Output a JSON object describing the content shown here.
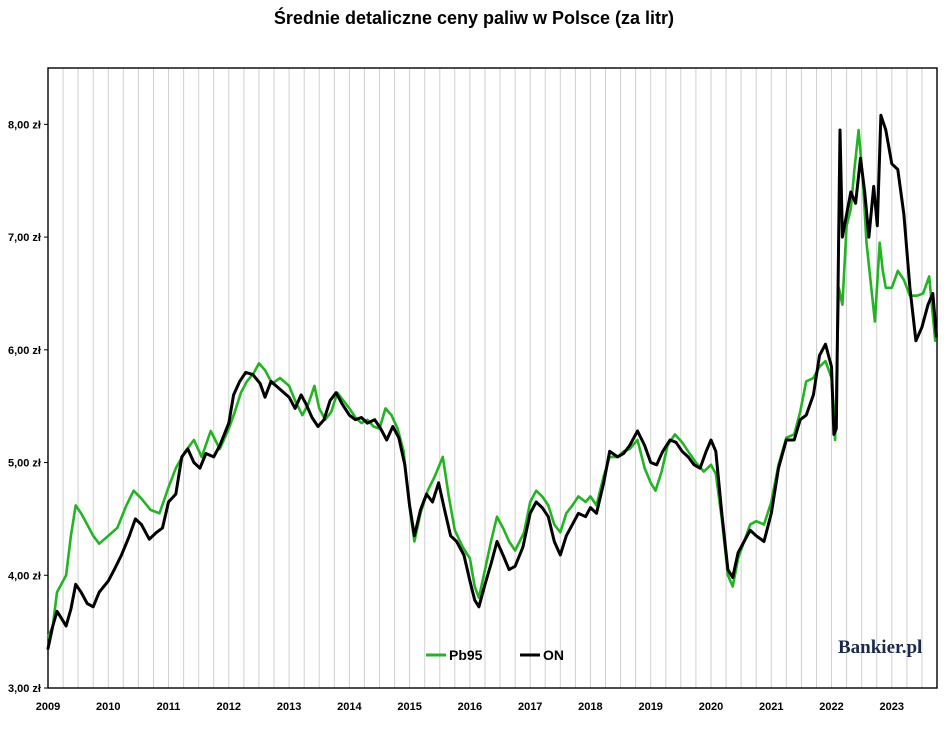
{
  "chart_data": {
    "type": "line",
    "title": "Średnie detaliczne ceny paliw w Polsce (za litr)",
    "xlabel": "",
    "ylabel": "",
    "xlim": [
      2009.0,
      2023.75
    ],
    "ylim": [
      3.0,
      8.5
    ],
    "x_ticks": [
      "2009",
      "2010",
      "2011",
      "2012",
      "2013",
      "2014",
      "2015",
      "2016",
      "2017",
      "2018",
      "2019",
      "2020",
      "2021",
      "2022",
      "2023"
    ],
    "y_ticks": [
      {
        "value": 3.0,
        "label": "3,00 zł"
      },
      {
        "value": 4.0,
        "label": "4,00 zł"
      },
      {
        "value": 5.0,
        "label": "5,00 zł"
      },
      {
        "value": 6.0,
        "label": "6,00 zł"
      },
      {
        "value": 7.0,
        "label": "7,00 zł"
      },
      {
        "value": 8.0,
        "label": "8,00 zł"
      }
    ],
    "grid": "vertical",
    "legend_position": "bottom-center",
    "series": [
      {
        "name": "Pb95",
        "color": "#22b422",
        "points": [
          [
            2009.0,
            3.45
          ],
          [
            2009.08,
            3.55
          ],
          [
            2009.15,
            3.85
          ],
          [
            2009.22,
            3.92
          ],
          [
            2009.3,
            4.0
          ],
          [
            2009.38,
            4.35
          ],
          [
            2009.46,
            4.62
          ],
          [
            2009.55,
            4.55
          ],
          [
            2009.65,
            4.45
          ],
          [
            2009.75,
            4.35
          ],
          [
            2009.85,
            4.28
          ],
          [
            2010.0,
            4.35
          ],
          [
            2010.15,
            4.42
          ],
          [
            2010.3,
            4.62
          ],
          [
            2010.42,
            4.75
          ],
          [
            2010.55,
            4.68
          ],
          [
            2010.7,
            4.58
          ],
          [
            2010.85,
            4.55
          ],
          [
            2011.0,
            4.78
          ],
          [
            2011.12,
            4.95
          ],
          [
            2011.28,
            5.1
          ],
          [
            2011.42,
            5.2
          ],
          [
            2011.55,
            5.05
          ],
          [
            2011.7,
            5.28
          ],
          [
            2011.85,
            5.12
          ],
          [
            2012.0,
            5.3
          ],
          [
            2012.1,
            5.45
          ],
          [
            2012.2,
            5.62
          ],
          [
            2012.3,
            5.72
          ],
          [
            2012.42,
            5.8
          ],
          [
            2012.5,
            5.88
          ],
          [
            2012.6,
            5.82
          ],
          [
            2012.72,
            5.7
          ],
          [
            2012.85,
            5.75
          ],
          [
            2013.0,
            5.68
          ],
          [
            2013.1,
            5.55
          ],
          [
            2013.22,
            5.42
          ],
          [
            2013.32,
            5.52
          ],
          [
            2013.42,
            5.68
          ],
          [
            2013.5,
            5.48
          ],
          [
            2013.6,
            5.38
          ],
          [
            2013.7,
            5.45
          ],
          [
            2013.8,
            5.62
          ],
          [
            2013.9,
            5.55
          ],
          [
            2014.0,
            5.48
          ],
          [
            2014.1,
            5.4
          ],
          [
            2014.2,
            5.35
          ],
          [
            2014.3,
            5.38
          ],
          [
            2014.4,
            5.32
          ],
          [
            2014.5,
            5.3
          ],
          [
            2014.6,
            5.48
          ],
          [
            2014.7,
            5.42
          ],
          [
            2014.8,
            5.3
          ],
          [
            2014.9,
            5.1
          ],
          [
            2015.0,
            4.6
          ],
          [
            2015.08,
            4.3
          ],
          [
            2015.18,
            4.55
          ],
          [
            2015.3,
            4.75
          ],
          [
            2015.42,
            4.88
          ],
          [
            2015.55,
            5.05
          ],
          [
            2015.65,
            4.7
          ],
          [
            2015.75,
            4.4
          ],
          [
            2015.88,
            4.25
          ],
          [
            2016.0,
            4.15
          ],
          [
            2016.08,
            3.9
          ],
          [
            2016.15,
            3.8
          ],
          [
            2016.25,
            4.05
          ],
          [
            2016.35,
            4.3
          ],
          [
            2016.45,
            4.52
          ],
          [
            2016.55,
            4.42
          ],
          [
            2016.65,
            4.3
          ],
          [
            2016.75,
            4.22
          ],
          [
            2016.9,
            4.38
          ],
          [
            2017.0,
            4.65
          ],
          [
            2017.1,
            4.75
          ],
          [
            2017.2,
            4.7
          ],
          [
            2017.3,
            4.62
          ],
          [
            2017.4,
            4.45
          ],
          [
            2017.5,
            4.38
          ],
          [
            2017.6,
            4.55
          ],
          [
            2017.7,
            4.62
          ],
          [
            2017.8,
            4.7
          ],
          [
            2017.92,
            4.65
          ],
          [
            2018.0,
            4.7
          ],
          [
            2018.1,
            4.62
          ],
          [
            2018.22,
            4.88
          ],
          [
            2018.32,
            5.05
          ],
          [
            2018.45,
            5.05
          ],
          [
            2018.55,
            5.1
          ],
          [
            2018.65,
            5.12
          ],
          [
            2018.78,
            5.2
          ],
          [
            2018.9,
            4.95
          ],
          [
            2019.0,
            4.82
          ],
          [
            2019.08,
            4.75
          ],
          [
            2019.18,
            4.92
          ],
          [
            2019.28,
            5.15
          ],
          [
            2019.4,
            5.25
          ],
          [
            2019.52,
            5.18
          ],
          [
            2019.62,
            5.1
          ],
          [
            2019.75,
            5.0
          ],
          [
            2019.88,
            4.92
          ],
          [
            2020.0,
            4.98
          ],
          [
            2020.08,
            4.9
          ],
          [
            2020.18,
            4.5
          ],
          [
            2020.28,
            4.0
          ],
          [
            2020.36,
            3.9
          ],
          [
            2020.45,
            4.15
          ],
          [
            2020.55,
            4.3
          ],
          [
            2020.65,
            4.45
          ],
          [
            2020.75,
            4.48
          ],
          [
            2020.88,
            4.45
          ],
          [
            2021.0,
            4.65
          ],
          [
            2021.12,
            4.98
          ],
          [
            2021.25,
            5.22
          ],
          [
            2021.38,
            5.25
          ],
          [
            2021.48,
            5.45
          ],
          [
            2021.58,
            5.72
          ],
          [
            2021.7,
            5.75
          ],
          [
            2021.8,
            5.85
          ],
          [
            2021.9,
            5.9
          ],
          [
            2022.0,
            5.75
          ],
          [
            2022.06,
            5.2
          ],
          [
            2022.12,
            6.55
          ],
          [
            2022.18,
            6.4
          ],
          [
            2022.25,
            7.1
          ],
          [
            2022.32,
            7.25
          ],
          [
            2022.38,
            7.6
          ],
          [
            2022.45,
            7.95
          ],
          [
            2022.52,
            7.5
          ],
          [
            2022.58,
            6.95
          ],
          [
            2022.65,
            6.6
          ],
          [
            2022.72,
            6.25
          ],
          [
            2022.8,
            6.95
          ],
          [
            2022.85,
            6.7
          ],
          [
            2022.9,
            6.55
          ],
          [
            2023.0,
            6.55
          ],
          [
            2023.1,
            6.7
          ],
          [
            2023.2,
            6.62
          ],
          [
            2023.3,
            6.48
          ],
          [
            2023.42,
            6.48
          ],
          [
            2023.52,
            6.5
          ],
          [
            2023.62,
            6.65
          ],
          [
            2023.72,
            6.08
          ]
        ]
      },
      {
        "name": "ON",
        "color": "#000000",
        "points": [
          [
            2009.0,
            3.35
          ],
          [
            2009.08,
            3.55
          ],
          [
            2009.15,
            3.68
          ],
          [
            2009.22,
            3.62
          ],
          [
            2009.3,
            3.55
          ],
          [
            2009.38,
            3.7
          ],
          [
            2009.46,
            3.92
          ],
          [
            2009.55,
            3.85
          ],
          [
            2009.65,
            3.75
          ],
          [
            2009.75,
            3.72
          ],
          [
            2009.85,
            3.85
          ],
          [
            2010.0,
            3.95
          ],
          [
            2010.1,
            4.05
          ],
          [
            2010.22,
            4.18
          ],
          [
            2010.35,
            4.35
          ],
          [
            2010.45,
            4.5
          ],
          [
            2010.55,
            4.45
          ],
          [
            2010.68,
            4.32
          ],
          [
            2010.8,
            4.38
          ],
          [
            2010.9,
            4.42
          ],
          [
            2011.0,
            4.65
          ],
          [
            2011.12,
            4.72
          ],
          [
            2011.22,
            5.05
          ],
          [
            2011.32,
            5.12
          ],
          [
            2011.42,
            5.0
          ],
          [
            2011.52,
            4.95
          ],
          [
            2011.62,
            5.08
          ],
          [
            2011.75,
            5.05
          ],
          [
            2011.85,
            5.15
          ],
          [
            2012.0,
            5.35
          ],
          [
            2012.08,
            5.6
          ],
          [
            2012.18,
            5.72
          ],
          [
            2012.28,
            5.8
          ],
          [
            2012.4,
            5.78
          ],
          [
            2012.52,
            5.7
          ],
          [
            2012.6,
            5.58
          ],
          [
            2012.7,
            5.72
          ],
          [
            2012.85,
            5.65
          ],
          [
            2013.0,
            5.58
          ],
          [
            2013.1,
            5.48
          ],
          [
            2013.2,
            5.6
          ],
          [
            2013.28,
            5.52
          ],
          [
            2013.38,
            5.4
          ],
          [
            2013.48,
            5.32
          ],
          [
            2013.58,
            5.38
          ],
          [
            2013.68,
            5.55
          ],
          [
            2013.78,
            5.62
          ],
          [
            2013.88,
            5.52
          ],
          [
            2014.0,
            5.42
          ],
          [
            2014.1,
            5.38
          ],
          [
            2014.2,
            5.4
          ],
          [
            2014.3,
            5.35
          ],
          [
            2014.42,
            5.38
          ],
          [
            2014.52,
            5.3
          ],
          [
            2014.62,
            5.2
          ],
          [
            2014.72,
            5.32
          ],
          [
            2014.82,
            5.22
          ],
          [
            2014.92,
            4.98
          ],
          [
            2015.0,
            4.62
          ],
          [
            2015.08,
            4.35
          ],
          [
            2015.18,
            4.58
          ],
          [
            2015.28,
            4.72
          ],
          [
            2015.38,
            4.65
          ],
          [
            2015.48,
            4.82
          ],
          [
            2015.58,
            4.58
          ],
          [
            2015.68,
            4.35
          ],
          [
            2015.78,
            4.3
          ],
          [
            2015.9,
            4.18
          ],
          [
            2016.0,
            3.95
          ],
          [
            2016.08,
            3.78
          ],
          [
            2016.15,
            3.72
          ],
          [
            2016.25,
            3.92
          ],
          [
            2016.35,
            4.1
          ],
          [
            2016.45,
            4.3
          ],
          [
            2016.55,
            4.18
          ],
          [
            2016.65,
            4.05
          ],
          [
            2016.75,
            4.08
          ],
          [
            2016.88,
            4.25
          ],
          [
            2017.0,
            4.55
          ],
          [
            2017.1,
            4.65
          ],
          [
            2017.2,
            4.6
          ],
          [
            2017.3,
            4.52
          ],
          [
            2017.4,
            4.3
          ],
          [
            2017.5,
            4.18
          ],
          [
            2017.6,
            4.35
          ],
          [
            2017.7,
            4.45
          ],
          [
            2017.8,
            4.55
          ],
          [
            2017.92,
            4.52
          ],
          [
            2018.0,
            4.6
          ],
          [
            2018.1,
            4.55
          ],
          [
            2018.22,
            4.82
          ],
          [
            2018.32,
            5.1
          ],
          [
            2018.45,
            5.05
          ],
          [
            2018.55,
            5.08
          ],
          [
            2018.65,
            5.15
          ],
          [
            2018.78,
            5.28
          ],
          [
            2018.9,
            5.15
          ],
          [
            2019.0,
            5.0
          ],
          [
            2019.1,
            4.98
          ],
          [
            2019.2,
            5.1
          ],
          [
            2019.32,
            5.2
          ],
          [
            2019.42,
            5.18
          ],
          [
            2019.52,
            5.1
          ],
          [
            2019.62,
            5.05
          ],
          [
            2019.72,
            4.98
          ],
          [
            2019.82,
            4.95
          ],
          [
            2019.92,
            5.1
          ],
          [
            2020.0,
            5.2
          ],
          [
            2020.08,
            5.1
          ],
          [
            2020.18,
            4.55
          ],
          [
            2020.28,
            4.05
          ],
          [
            2020.36,
            3.98
          ],
          [
            2020.45,
            4.2
          ],
          [
            2020.55,
            4.3
          ],
          [
            2020.65,
            4.4
          ],
          [
            2020.75,
            4.35
          ],
          [
            2020.88,
            4.3
          ],
          [
            2021.0,
            4.55
          ],
          [
            2021.12,
            4.95
          ],
          [
            2021.25,
            5.2
          ],
          [
            2021.38,
            5.2
          ],
          [
            2021.48,
            5.38
          ],
          [
            2021.58,
            5.42
          ],
          [
            2021.7,
            5.6
          ],
          [
            2021.8,
            5.95
          ],
          [
            2021.9,
            6.05
          ],
          [
            2022.0,
            5.85
          ],
          [
            2022.04,
            5.25
          ],
          [
            2022.08,
            5.3
          ],
          [
            2022.14,
            7.95
          ],
          [
            2022.18,
            7.0
          ],
          [
            2022.25,
            7.2
          ],
          [
            2022.32,
            7.4
          ],
          [
            2022.4,
            7.3
          ],
          [
            2022.48,
            7.7
          ],
          [
            2022.55,
            7.4
          ],
          [
            2022.62,
            7.0
          ],
          [
            2022.7,
            7.45
          ],
          [
            2022.76,
            7.1
          ],
          [
            2022.82,
            8.08
          ],
          [
            2022.9,
            7.95
          ],
          [
            2023.0,
            7.65
          ],
          [
            2023.1,
            7.6
          ],
          [
            2023.2,
            7.2
          ],
          [
            2023.3,
            6.55
          ],
          [
            2023.4,
            6.08
          ],
          [
            2023.5,
            6.2
          ],
          [
            2023.6,
            6.4
          ],
          [
            2023.68,
            6.5
          ],
          [
            2023.74,
            6.12
          ]
        ]
      }
    ]
  },
  "legend": {
    "items": [
      {
        "label": "Pb95",
        "color": "#22b422"
      },
      {
        "label": "ON",
        "color": "#000000"
      }
    ]
  },
  "brand": {
    "text": "Bankier.pl"
  }
}
